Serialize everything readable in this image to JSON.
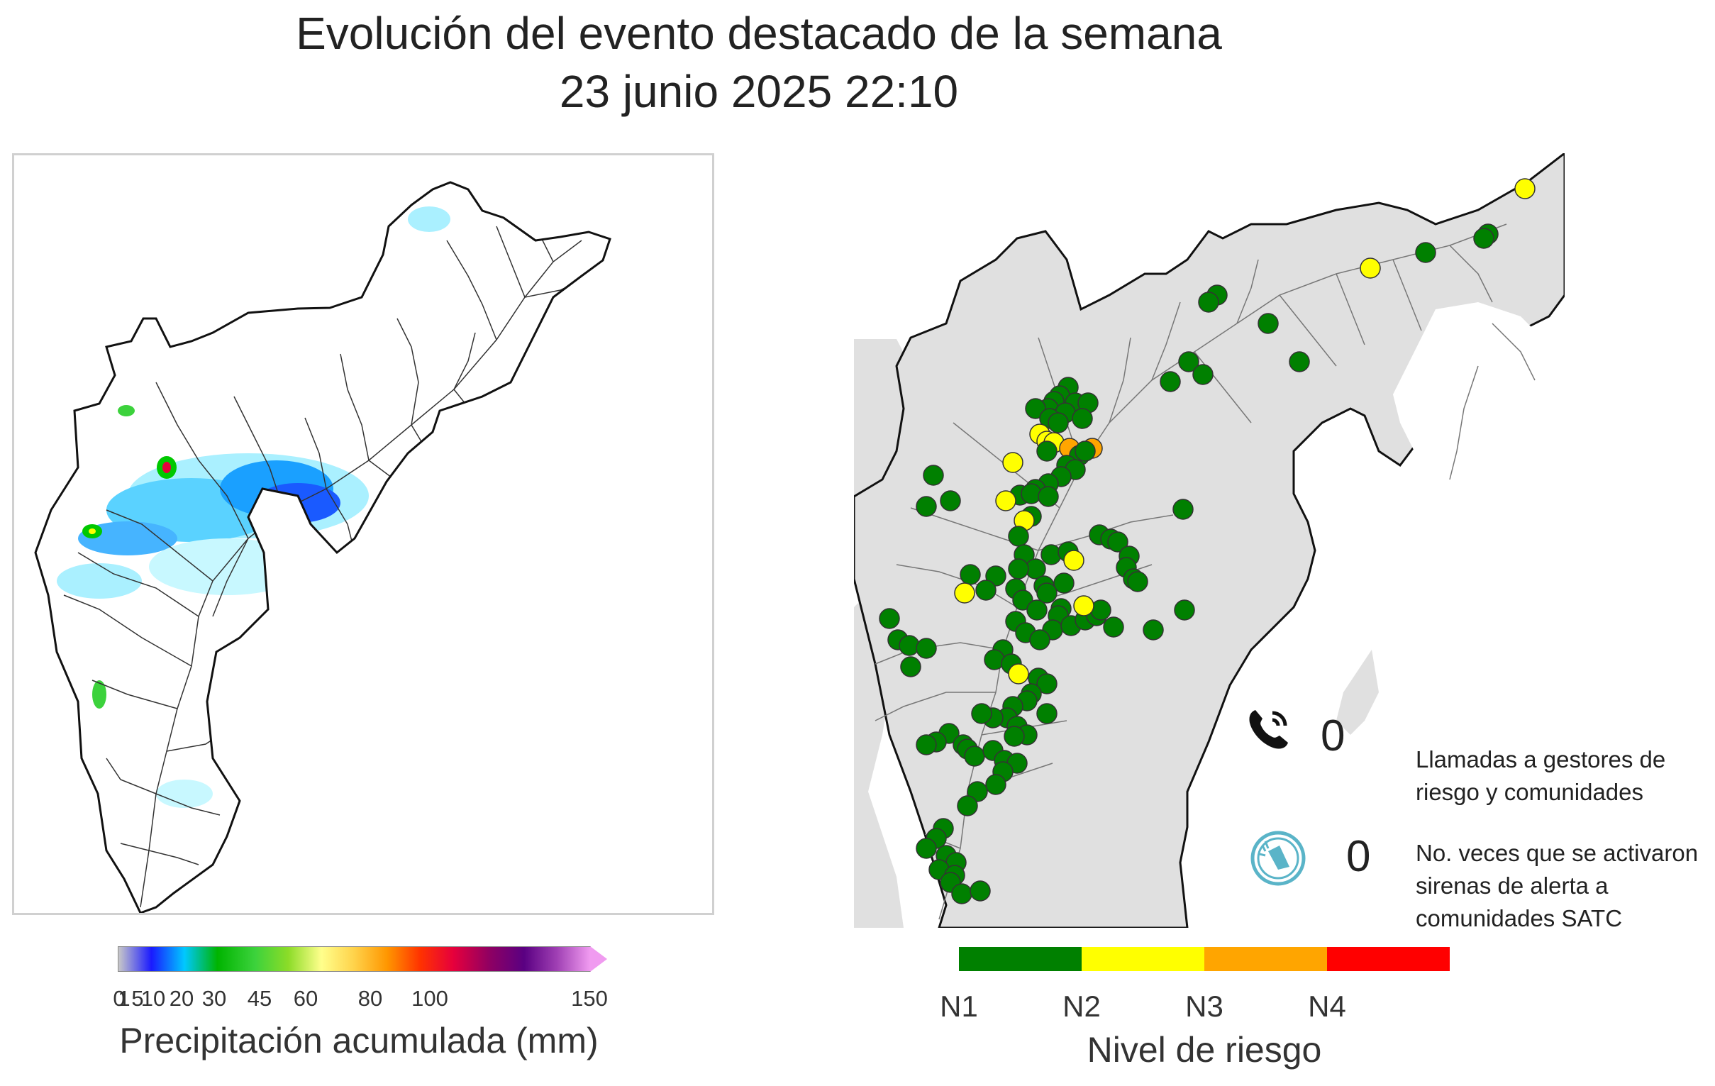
{
  "title": {
    "line1": "Evolución del evento destacado de la semana",
    "line2": "23 junio 2025 22:10"
  },
  "precipitation_legend": {
    "label": "Precipitación acumulada (mm)",
    "ticks": [
      "0",
      "1",
      "5",
      "10",
      "20",
      "30",
      "45",
      "60",
      "80",
      "100",
      "150"
    ],
    "colors": [
      "#c8c8c8",
      "#1a1aff",
      "#00c8ff",
      "#00b400",
      "#3cd23c",
      "#8cdc28",
      "#ffff8c",
      "#ffd24a",
      "#ff9600",
      "#ff3200",
      "#e6003c",
      "#8c0064",
      "#5a0082",
      "#a040b4",
      "#f09bf0"
    ]
  },
  "risk_legend": {
    "label": "Nivel de riesgo",
    "levels": [
      {
        "label": "N1",
        "color": "#008000"
      },
      {
        "label": "N2",
        "color": "#ffff00"
      },
      {
        "label": "N3",
        "color": "#ffa500"
      },
      {
        "label": "N4",
        "color": "#ff0000"
      }
    ]
  },
  "calls": {
    "icon": "phone-icon",
    "count": "0",
    "description": "Llamadas a gestores de riesgo y comunidades"
  },
  "sirens": {
    "icon": "siren-icon",
    "count": "0",
    "description": "No. veces que se activaron sirenas de alerta a comunidades SATC"
  },
  "colors": {
    "basin_fill": "#e0e0e0",
    "river": "#333333",
    "station_n1": "#008000",
    "station_n2": "#ffff00",
    "station_n3": "#ffa500"
  }
}
